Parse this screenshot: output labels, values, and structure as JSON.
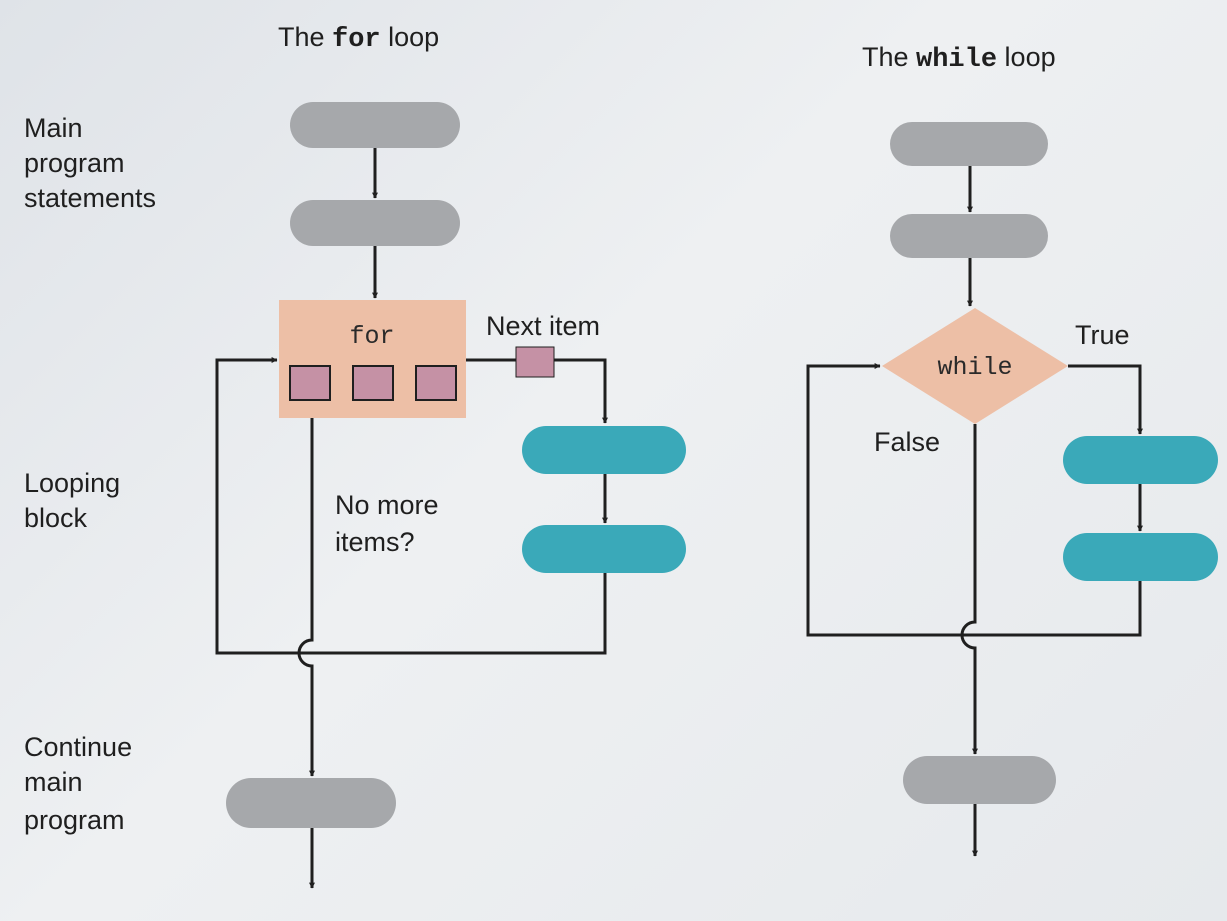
{
  "for_loop": {
    "title_prefix": "The ",
    "title_code": "for",
    "title_suffix": " loop",
    "keyword": "for",
    "next_item_label": "Next item",
    "exit_label": [
      "No more",
      "items?"
    ]
  },
  "while_loop": {
    "title_prefix": "The ",
    "title_code": "while",
    "title_suffix": " loop",
    "keyword": "while",
    "true_label": "True",
    "false_label": "False"
  },
  "side_labels": {
    "main": [
      "Main",
      "program",
      "statements"
    ],
    "looping": [
      "Looping",
      "block"
    ],
    "continue": [
      "Continue",
      "main",
      "program"
    ]
  },
  "colors": {
    "statement_gray": "#a6a8ab",
    "loop_teal": "#3aa9b9",
    "for_box": "#edbfa6",
    "item_square": "#c591a5",
    "diamond": "#edbfa6",
    "line": "#1f1f1f"
  }
}
